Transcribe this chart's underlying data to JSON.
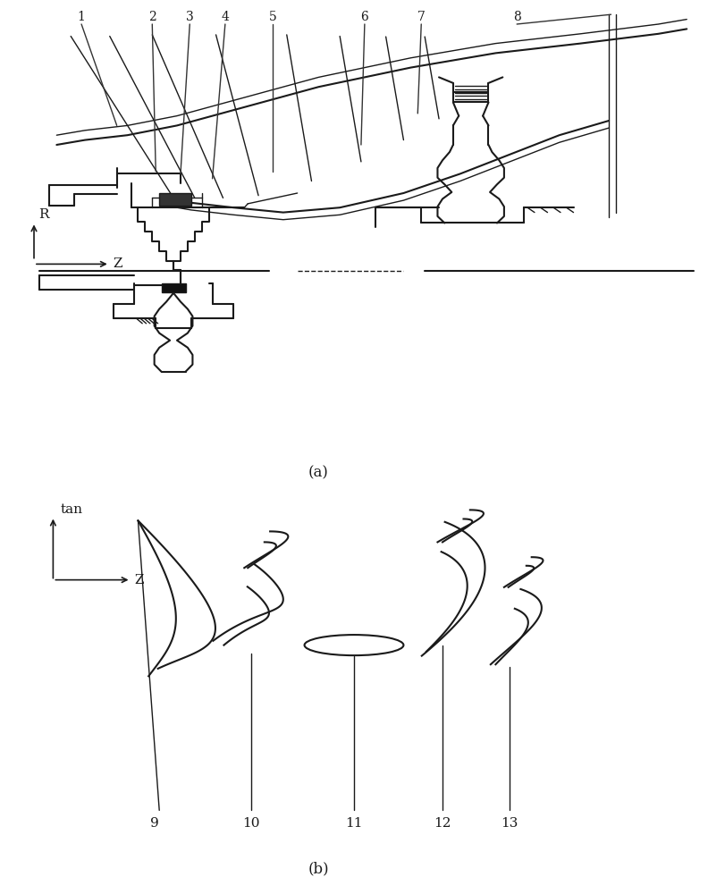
{
  "bg": "#ffffff",
  "lc": "#1a1a1a",
  "gray": "#555555",
  "fig_w": 7.92,
  "fig_h": 10.0,
  "dpi": 100,
  "labels_a": [
    "1",
    "2",
    "3",
    "4",
    "5",
    "6",
    "7",
    "8"
  ],
  "labels_b": [
    "9",
    "10",
    "11",
    "12",
    "13"
  ],
  "cap_a": "(a)",
  "cap_b": "(b)"
}
